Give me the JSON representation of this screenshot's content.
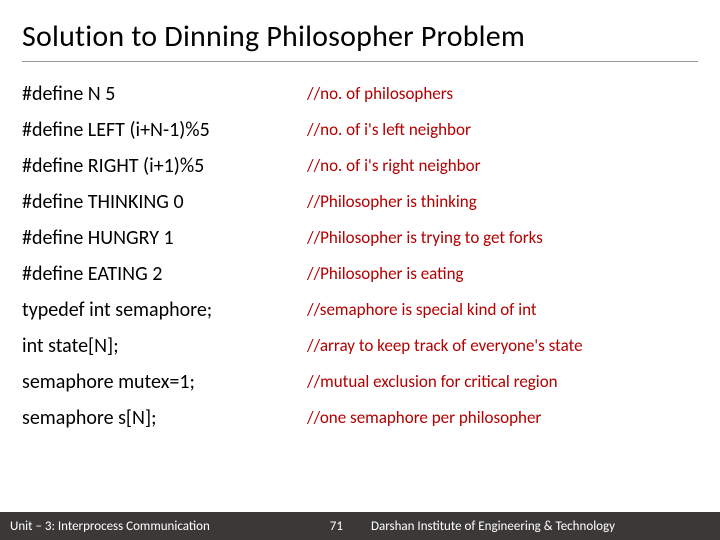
{
  "title": "Solution to Dinning Philosopher Problem",
  "comment_color": "#b30000",
  "rows": [
    {
      "code": "#define N 5",
      "comment": "//no. of philosophers"
    },
    {
      "code": "#define LEFT (i+N-1)%5",
      "comment": "//no. of i's left neighbor"
    },
    {
      "code": "#define RIGHT (i+1)%5",
      "comment": "//no. of i's right neighbor"
    },
    {
      "code": "#define THINKING 0",
      "comment": "//Philosopher is thinking"
    },
    {
      "code": "#define HUNGRY 1",
      "comment": "//Philosopher is trying to get forks"
    },
    {
      "code": "#define EATING 2",
      "comment": "//Philosopher is eating"
    },
    {
      "code": "typedef int semaphore;",
      "comment": "//semaphore is special kind of int"
    },
    {
      "code": "int state[N];",
      "comment": "//array to keep track of everyone's state"
    },
    {
      "code": "semaphore mutex=1;",
      "comment": "//mutual exclusion for critical region"
    },
    {
      "code": "semaphore s[N];",
      "comment": "//one semaphore per philosopher"
    }
  ],
  "footer": {
    "left": "Unit – 3: Interprocess Communication",
    "page": "71",
    "right": "Darshan Institute of Engineering & Technology"
  }
}
